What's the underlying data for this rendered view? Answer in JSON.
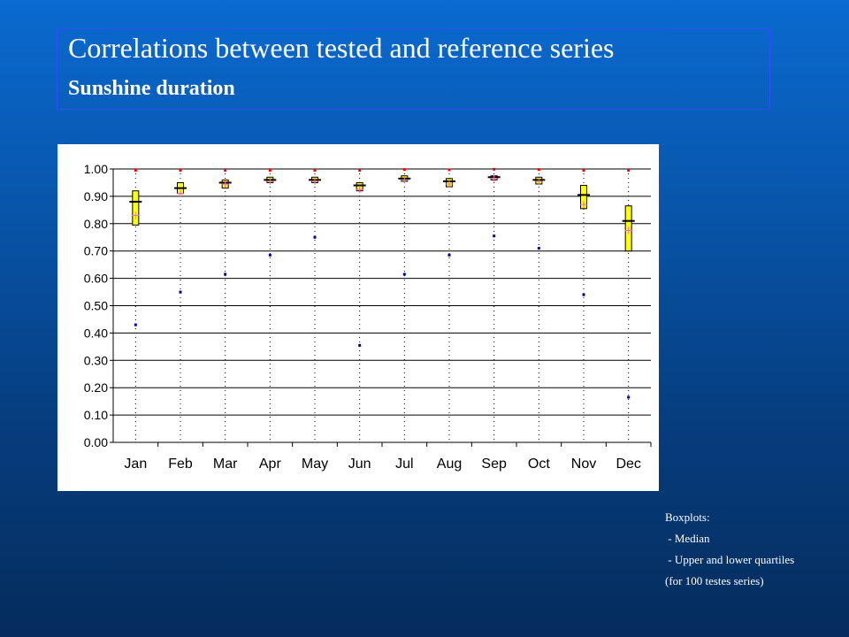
{
  "header": {
    "title": "Correlations between tested and reference series",
    "subtitle": "Sunshine duration"
  },
  "notes": {
    "heading": "Boxplots:",
    "items": [
      " - Median",
      " - Upper and lower quartiles"
    ],
    "footer": "(for 100 testes series)"
  },
  "colors": {
    "box_fill": "#ffff00",
    "max_marker": "#ff0000",
    "min_marker": "#000099",
    "mean_marker": "#ff66cc",
    "median_line": "#000000"
  },
  "chart_data": {
    "type": "boxplot",
    "categories": [
      "Jan",
      "Feb",
      "Mar",
      "Apr",
      "May",
      "Jun",
      "Jul",
      "Aug",
      "Sep",
      "Oct",
      "Nov",
      "Dec"
    ],
    "ylim": [
      0,
      1
    ],
    "yticks": [
      "0.00",
      "0.10",
      "0.20",
      "0.30",
      "0.40",
      "0.50",
      "0.60",
      "0.70",
      "0.80",
      "0.90",
      "1.00"
    ],
    "grid": true,
    "series": [
      {
        "values": [
          0.92,
          0.95,
          0.96,
          0.97,
          0.97,
          0.95,
          0.975,
          0.965,
          0.975,
          0.97,
          0.94,
          0.865
        ]
      },
      {
        "values": [
          0.88,
          0.93,
          0.95,
          0.96,
          0.96,
          0.94,
          0.965,
          0.955,
          0.97,
          0.96,
          0.905,
          0.81
        ]
      },
      {
        "values": [
          0.795,
          0.91,
          0.93,
          0.95,
          0.95,
          0.92,
          0.955,
          0.935,
          0.96,
          0.945,
          0.855,
          0.7
        ]
      },
      {
        "values": [
          0.83,
          0.91,
          0.945,
          0.955,
          0.955,
          0.925,
          0.96,
          0.945,
          0.965,
          0.955,
          0.87,
          0.775
        ]
      },
      {
        "values": [
          0.995,
          0.995,
          0.995,
          0.995,
          0.995,
          0.995,
          0.998,
          0.997,
          0.999,
          0.998,
          0.995,
          0.995
        ]
      },
      {
        "values": [
          0.43,
          0.55,
          0.615,
          0.685,
          0.75,
          0.355,
          0.615,
          0.685,
          0.755,
          0.71,
          0.54,
          0.165
        ]
      }
    ]
  }
}
